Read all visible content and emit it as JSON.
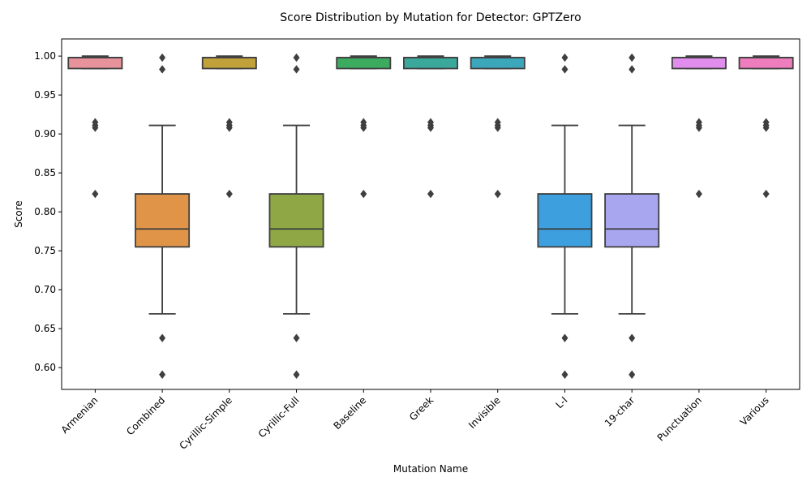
{
  "chart_data": {
    "type": "box",
    "title": "Score Distribution by Mutation for Detector: GPTZero",
    "xlabel": "Mutation Name",
    "ylabel": "Score",
    "ylim": [
      0.572,
      1.022
    ],
    "yticks": [
      0.6,
      0.65,
      0.7,
      0.75,
      0.8,
      0.85,
      0.9,
      0.95,
      1.0
    ],
    "ytick_labels": [
      "0.60",
      "0.65",
      "0.70",
      "0.75",
      "0.80",
      "0.85",
      "0.90",
      "0.95",
      "1.00"
    ],
    "grid": false,
    "legend": null,
    "categories": [
      "Armenian",
      "Combined",
      "Cyrillic-Simple",
      "Cyrillic-Full",
      "Baseline",
      "Greek",
      "Invisible",
      "L-I",
      "19-char",
      "Punctuation",
      "Various"
    ],
    "colors": [
      "#e8929b",
      "#e09448",
      "#c0a13a",
      "#8fa845",
      "#3dab5f",
      "#3aa99c",
      "#3ca6bb",
      "#3d9fde",
      "#a7a6ef",
      "#e18ded",
      "#ee7dbd"
    ],
    "boxes": [
      {
        "q1": 0.984,
        "median": 0.998,
        "q3": 0.998,
        "whisker_low": 0.984,
        "whisker_high": 1.0,
        "outliers": [
          0.823,
          0.908,
          0.911,
          0.915
        ]
      },
      {
        "q1": 0.755,
        "median": 0.778,
        "q3": 0.823,
        "whisker_low": 0.669,
        "whisker_high": 0.911,
        "outliers": [
          0.591,
          0.638,
          0.983,
          0.998
        ]
      },
      {
        "q1": 0.984,
        "median": 0.998,
        "q3": 0.998,
        "whisker_low": 0.984,
        "whisker_high": 1.0,
        "outliers": [
          0.823,
          0.908,
          0.911,
          0.915
        ]
      },
      {
        "q1": 0.755,
        "median": 0.778,
        "q3": 0.823,
        "whisker_low": 0.669,
        "whisker_high": 0.911,
        "outliers": [
          0.591,
          0.638,
          0.983,
          0.998
        ]
      },
      {
        "q1": 0.984,
        "median": 0.998,
        "q3": 0.998,
        "whisker_low": 0.984,
        "whisker_high": 1.0,
        "outliers": [
          0.823,
          0.908,
          0.911,
          0.915
        ]
      },
      {
        "q1": 0.984,
        "median": 0.998,
        "q3": 0.998,
        "whisker_low": 0.984,
        "whisker_high": 1.0,
        "outliers": [
          0.823,
          0.908,
          0.911,
          0.915
        ]
      },
      {
        "q1": 0.984,
        "median": 0.998,
        "q3": 0.998,
        "whisker_low": 0.984,
        "whisker_high": 1.0,
        "outliers": [
          0.823,
          0.908,
          0.911,
          0.915
        ]
      },
      {
        "q1": 0.755,
        "median": 0.778,
        "q3": 0.823,
        "whisker_low": 0.669,
        "whisker_high": 0.911,
        "outliers": [
          0.591,
          0.638,
          0.983,
          0.998
        ]
      },
      {
        "q1": 0.755,
        "median": 0.778,
        "q3": 0.823,
        "whisker_low": 0.669,
        "whisker_high": 0.911,
        "outliers": [
          0.591,
          0.638,
          0.983,
          0.998
        ]
      },
      {
        "q1": 0.984,
        "median": 0.998,
        "q3": 0.998,
        "whisker_low": 0.984,
        "whisker_high": 1.0,
        "outliers": [
          0.823,
          0.908,
          0.911,
          0.915
        ]
      },
      {
        "q1": 0.984,
        "median": 0.998,
        "q3": 0.998,
        "whisker_low": 0.984,
        "whisker_high": 1.0,
        "outliers": [
          0.823,
          0.908,
          0.911,
          0.915
        ]
      }
    ]
  }
}
